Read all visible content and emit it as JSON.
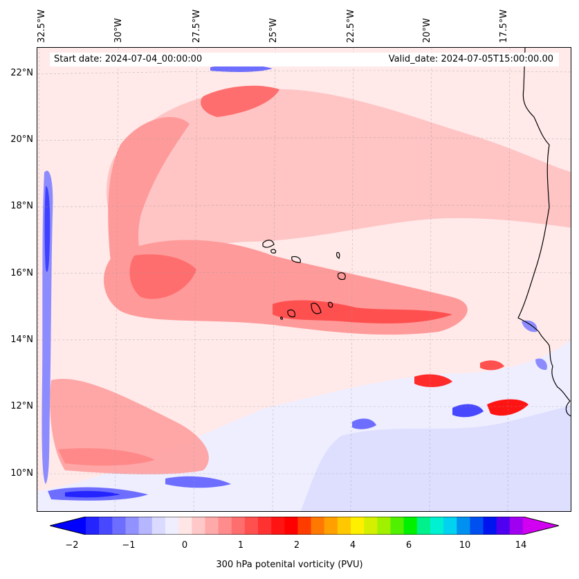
{
  "header": {
    "start_date": "Start date: 2024-07-04_00:00:00",
    "valid_date": "Valid_date: 2024-07-05T15:00:00.00"
  },
  "longitude_labels": [
    "32.5°W",
    "30°W",
    "27.5°W",
    "25°W",
    "22.5°W",
    "20°W",
    "17.5°W"
  ],
  "latitude_labels": [
    "22°N",
    "20°N",
    "18°N",
    "16°N",
    "14°N",
    "12°N",
    "10°N"
  ],
  "colorbar": {
    "title": "300 hPa potenital vorticity (PVU)",
    "tick_labels": [
      "−2",
      "−1",
      "0",
      "1",
      "2",
      "4",
      "6",
      "10",
      "14"
    ],
    "colors": [
      "#0000ff",
      "#2424ff",
      "#4848ff",
      "#6d6dff",
      "#9191ff",
      "#b6b6ff",
      "#dadaff",
      "#eeeeff",
      "#ffe6e6",
      "#ffc8c8",
      "#ffaaaa",
      "#ff8c8c",
      "#ff6e6e",
      "#ff5050",
      "#ff3232",
      "#ff1414",
      "#ff0000",
      "#ff3c00",
      "#ff7800",
      "#ffa000",
      "#ffc800",
      "#fff000",
      "#d4f000",
      "#a0f000",
      "#50f000",
      "#00f000",
      "#00f08c",
      "#00f0d2",
      "#00d2f0",
      "#0090f0",
      "#0050f0",
      "#0014f0",
      "#5000f0",
      "#a000f0",
      "#d200f0"
    ]
  },
  "pv_levels_colors": {
    "neg_strong": "#4040ff",
    "neg_mid": "#8c8cff",
    "neg_weak": "#c9c9ff",
    "neg_faint": "#eeeeff",
    "pos_faint": "#ffe6e6",
    "pos_weak": "#ffc4c4",
    "pos_mid": "#ff9a9a",
    "pos_strong": "#ff6e6e",
    "pos_max": "#ff2a2a"
  }
}
